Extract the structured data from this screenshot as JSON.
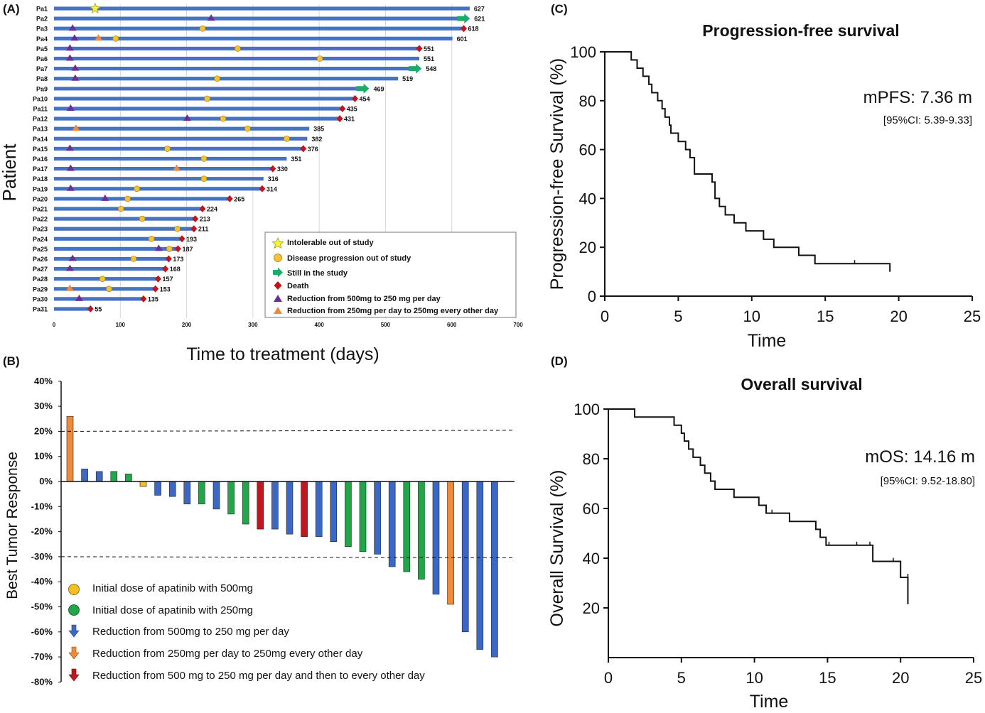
{
  "panels": {
    "A": {
      "tag": "(A)",
      "ylabel": "Patient",
      "xlabel": "Time to treatment (days)",
      "xticks": [
        "0",
        "100",
        "200",
        "300",
        "400",
        "500",
        "600",
        "700"
      ],
      "legend": [
        {
          "symbol": "star",
          "text": "Intolerable out of study"
        },
        {
          "symbol": "circle",
          "text": "Disease progression out of study"
        },
        {
          "symbol": "arrow",
          "text": "Still in the study"
        },
        {
          "symbol": "diamond",
          "text": "Death"
        },
        {
          "symbol": "tri_purple",
          "text": "Reduction from 500mg to 250 mg per day"
        },
        {
          "symbol": "tri_orange",
          "text": "Reduction from 250mg per day to 250mg every other day"
        }
      ]
    },
    "B": {
      "tag": "(B)",
      "ylabel": "Best Tumor Response",
      "yticks": [
        "40%",
        "30%",
        "20%",
        "10%",
        "0%",
        "-10%",
        "-20%",
        "-30%",
        "-40%",
        "-50%",
        "-60%",
        "-70%",
        "-80%"
      ],
      "legend": [
        {
          "symbol": "dot_yellow",
          "text": "Initial dose of apatinib with 500mg"
        },
        {
          "symbol": "dot_green",
          "text": "Initial dose of apatinib with 250mg"
        },
        {
          "symbol": "arrow_blue",
          "text": "Reduction from 500mg to 250 mg per day"
        },
        {
          "symbol": "arrow_orange",
          "text": "Reduction from 250mg per day to 250mg every other day"
        },
        {
          "symbol": "arrow_red",
          "text": "Reduction from 500 mg to 250 mg per day and then to every other day"
        }
      ]
    },
    "C": {
      "tag": "(C)",
      "title": "Progression-free survival",
      "ylabel": "Progression-free Survival (%)",
      "xlabel": "Time",
      "stat": "mPFS: 7.36 m",
      "ci": "[95%CI: 5.39-9.33]",
      "xticks": [
        "0",
        "5",
        "10",
        "15",
        "20",
        "25"
      ],
      "yticks": [
        "0",
        "20",
        "40",
        "60",
        "80",
        "100"
      ]
    },
    "D": {
      "tag": "(D)",
      "title": "Overall survival",
      "ylabel": "Overall  Survival (%)",
      "xlabel": "Time",
      "stat": "mOS: 14.16 m",
      "ci": "[95%CI: 9.52-18.80]",
      "xticks": [
        "0",
        "5",
        "10",
        "15",
        "20",
        "25"
      ],
      "yticks": [
        "20",
        "40",
        "60",
        "80",
        "100"
      ]
    }
  },
  "colors": {
    "bar_blue": "#3a68c4",
    "bar_green": "#22a64a",
    "bar_orange": "#ef8a3a",
    "bar_red": "#c0181e",
    "bar_yellow": "#f2c021",
    "swim_blue": "#4472c4",
    "marker_purple": "#6a2e9a",
    "marker_orange": "#f0883a",
    "marker_circle": "#f7c233",
    "marker_arrow": "#1faa6a",
    "marker_diamond": "#c0151e",
    "marker_star": "#f5f23a"
  },
  "chart_data": [
    {
      "type": "swimmer",
      "panel": "A",
      "x_range": [
        0,
        700
      ],
      "patients": [
        {
          "id": "Pa1",
          "days": 627,
          "end": "none",
          "star": 62
        },
        {
          "id": "Pa2",
          "days": 621,
          "end": "arrow",
          "tri_purple": [
            237
          ]
        },
        {
          "id": "Pa3",
          "days": 618,
          "end": "diamond",
          "tri_purple": [
            28
          ],
          "circles": [
            224
          ]
        },
        {
          "id": "Pa4",
          "days": 601,
          "end": "none",
          "tri_purple": [
            31
          ],
          "tri_orange": [
            67
          ],
          "circles": [
            93
          ]
        },
        {
          "id": "Pa5",
          "days": 551,
          "end": "diamond",
          "tri_purple": [
            24
          ],
          "circles": [
            277
          ]
        },
        {
          "id": "Pa6",
          "days": 551,
          "end": "none",
          "tri_purple": [
            24
          ],
          "circles": [
            401
          ]
        },
        {
          "id": "Pa7",
          "days": 548,
          "end": "arrow",
          "tri_purple": [
            32
          ]
        },
        {
          "id": "Pa8",
          "days": 519,
          "end": "none",
          "tri_purple": [
            32
          ],
          "circles": [
            246
          ]
        },
        {
          "id": "Pa9",
          "days": 469,
          "end": "arrow"
        },
        {
          "id": "Pa10",
          "days": 454,
          "end": "diamond",
          "circles": [
            231
          ]
        },
        {
          "id": "Pa11",
          "days": 435,
          "end": "diamond",
          "tri_purple": [
            25
          ]
        },
        {
          "id": "Pa12",
          "days": 431,
          "end": "diamond",
          "tri_purple": [
            201
          ],
          "circles": [
            255
          ]
        },
        {
          "id": "Pa13",
          "days": 385,
          "end": "none",
          "tri_orange": [
            33
          ],
          "circles": [
            292
          ]
        },
        {
          "id": "Pa14",
          "days": 382,
          "end": "none",
          "circles": [
            351
          ]
        },
        {
          "id": "Pa15",
          "days": 376,
          "end": "diamond",
          "tri_purple": [
            24
          ],
          "circles": [
            171
          ]
        },
        {
          "id": "Pa16",
          "days": 351,
          "end": "none",
          "circles": [
            226
          ]
        },
        {
          "id": "Pa17",
          "days": 330,
          "end": "diamond",
          "tri_purple": [
            25
          ],
          "tri_orange": [
            185
          ]
        },
        {
          "id": "Pa18",
          "days": 316,
          "end": "none",
          "circles": [
            226
          ]
        },
        {
          "id": "Pa19",
          "days": 314,
          "end": "diamond",
          "tri_purple": [
            25
          ],
          "circles": [
            125
          ]
        },
        {
          "id": "Pa20",
          "days": 265,
          "end": "diamond",
          "tri_purple": [
            77
          ],
          "circles": [
            111
          ]
        },
        {
          "id": "Pa21",
          "days": 224,
          "end": "diamond",
          "circles": [
            101
          ]
        },
        {
          "id": "Pa22",
          "days": 213,
          "end": "diamond",
          "circles": [
            133
          ]
        },
        {
          "id": "Pa23",
          "days": 211,
          "end": "diamond",
          "circles": [
            186
          ]
        },
        {
          "id": "Pa24",
          "days": 193,
          "end": "diamond",
          "circles": [
            147
          ]
        },
        {
          "id": "Pa25",
          "days": 187,
          "end": "diamond",
          "tri_purple": [
            158
          ],
          "circles": [
            174
          ]
        },
        {
          "id": "Pa26",
          "days": 173,
          "end": "diamond",
          "tri_purple": [
            28
          ],
          "circles": [
            120
          ]
        },
        {
          "id": "Pa27",
          "days": 168,
          "end": "diamond",
          "tri_purple": [
            24
          ]
        },
        {
          "id": "Pa28",
          "days": 157,
          "end": "diamond",
          "circles": [
            73
          ]
        },
        {
          "id": "Pa29",
          "days": 153,
          "end": "diamond",
          "tri_orange": [
            24
          ],
          "circles": [
            83
          ]
        },
        {
          "id": "Pa30",
          "days": 135,
          "end": "diamond",
          "tri_purple": [
            38
          ]
        },
        {
          "id": "Pa31",
          "days": 55,
          "end": "diamond"
        }
      ]
    },
    {
      "type": "bar",
      "panel": "B",
      "ylim": [
        -80,
        40
      ],
      "reference_lines": [
        20,
        -30
      ],
      "values": [
        26,
        5,
        4,
        4,
        3,
        -2,
        -5.5,
        -6,
        -9,
        -9,
        -11,
        -13,
        -17,
        -19,
        -19,
        -21,
        -22,
        -22,
        -24,
        -26,
        -28,
        -29,
        -34,
        -36,
        -39,
        -45,
        -49,
        -60,
        -67,
        -70
      ],
      "colors": [
        "orange",
        "blue",
        "blue",
        "green",
        "green",
        "yellow",
        "blue",
        "blue",
        "blue",
        "green",
        "blue",
        "green",
        "green",
        "red",
        "blue",
        "blue",
        "red",
        "blue",
        "blue",
        "green",
        "green",
        "blue",
        "blue",
        "green",
        "green",
        "blue",
        "orange",
        "blue",
        "blue",
        "blue"
      ]
    },
    {
      "type": "line",
      "panel": "C",
      "title": "Progression-free survival",
      "xlim": [
        0,
        25
      ],
      "ylim": [
        0,
        100
      ],
      "step_x": [
        0,
        1.8,
        2.2,
        2.6,
        3.0,
        3.2,
        3.6,
        3.9,
        4.1,
        4.4,
        4.5,
        5.0,
        5.5,
        5.8,
        6.1,
        7.3,
        7.5,
        7.8,
        8.2,
        8.8,
        9.6,
        10.8,
        11.5,
        13.2,
        14.3,
        19.4
      ],
      "step_y": [
        100,
        96.7,
        93.3,
        90.0,
        86.7,
        83.3,
        80.0,
        76.7,
        73.3,
        70.0,
        66.7,
        63.3,
        60.0,
        56.7,
        50.0,
        46.7,
        40.0,
        36.7,
        33.3,
        30.0,
        26.7,
        23.3,
        20.0,
        16.7,
        13.3,
        10.0
      ],
      "censored_x": [
        17.0,
        19.4
      ]
    },
    {
      "type": "line",
      "panel": "D",
      "title": "Overall survival",
      "xlim": [
        0,
        25
      ],
      "ylim": [
        0,
        100
      ],
      "step_x": [
        0,
        1.8,
        4.5,
        5.0,
        5.2,
        5.5,
        5.8,
        6.3,
        6.6,
        7.0,
        7.3,
        8.6,
        10.3,
        10.8,
        12.4,
        14.2,
        14.5,
        14.9,
        18.1,
        20.0
      ],
      "step_y": [
        100,
        96.8,
        93.5,
        90.3,
        87.1,
        83.9,
        80.6,
        77.4,
        74.2,
        71.0,
        67.7,
        64.5,
        61.3,
        58.1,
        54.8,
        51.6,
        48.4,
        45.2,
        38.7,
        32.3
      ],
      "censored_x": [
        11.2,
        12.4,
        15.1,
        17.0,
        17.9,
        19.5,
        20.5
      ],
      "tail_y": 21.5
    }
  ]
}
